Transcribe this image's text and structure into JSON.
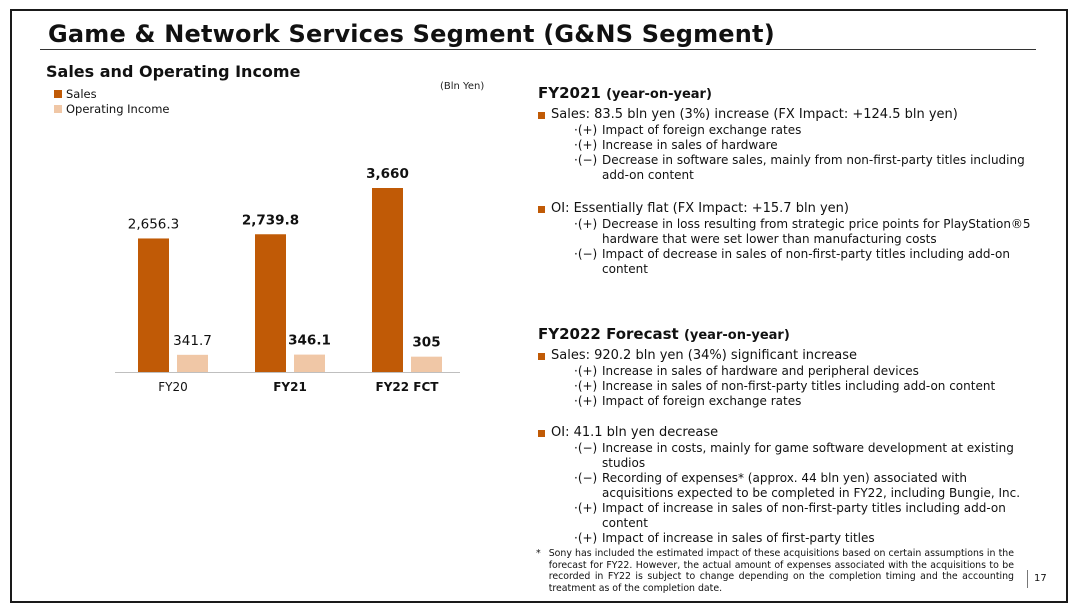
{
  "slide": {
    "title": "Game & Network Services Segment (G&NS Segment)",
    "page_number": "17"
  },
  "colors": {
    "sales": "#c05a06",
    "operating_income": "#f0c7a6",
    "bullet": "#c05a06"
  },
  "chart_data": {
    "type": "bar",
    "title": "Sales and Operating Income",
    "unit": "(Bln Yen)",
    "categories": [
      "FY20",
      "FY21",
      "FY22 FCT"
    ],
    "bold_categories": [
      "FY21",
      "FY22 FCT"
    ],
    "series": [
      {
        "name": "Sales",
        "values": [
          2656.3,
          2739.8,
          3660
        ],
        "labels": [
          "2,656.3",
          "2,739.8",
          "3,660"
        ]
      },
      {
        "name": "Operating Income",
        "values": [
          341.7,
          346.1,
          305
        ],
        "labels": [
          "341.7",
          "346.1",
          "305"
        ]
      }
    ],
    "xlabel": "",
    "ylabel": "",
    "ylim": [
      0,
      3660
    ],
    "grid": false,
    "legend_position": "top-left"
  },
  "fy2021": {
    "heading": "FY2021",
    "heading_sub": "(year-on-year)",
    "sales": {
      "text": "Sales: 83.5 bln yen (3%) increase (FX Impact: +124.5 bln yen)",
      "items": [
        {
          "mark": "·(+)",
          "text": "Impact of foreign exchange rates"
        },
        {
          "mark": "·(+)",
          "text": "Increase in sales of hardware"
        },
        {
          "mark": "·(−)",
          "text": "Decrease in software sales, mainly from non-first-party titles including add-on content"
        }
      ]
    },
    "oi": {
      "text": "OI:  Essentially flat (FX Impact: +15.7 bln yen)",
      "items": [
        {
          "mark": "·(+)",
          "text": "Decrease in loss resulting from strategic price points for PlayStation®5 hardware that were set lower than manufacturing costs"
        },
        {
          "mark": "·(−)",
          "text": "Impact of decrease in sales of non-first-party titles including add-on content"
        }
      ]
    }
  },
  "fy2022": {
    "heading": "FY2022 Forecast",
    "heading_sub": "(year-on-year)",
    "sales": {
      "text": "Sales: 920.2 bln yen (34%) significant increase",
      "items": [
        {
          "mark": "·(+)",
          "text": "Increase in sales of hardware and peripheral devices"
        },
        {
          "mark": "·(+)",
          "text": "Increase in sales of non-first-party titles including add-on content"
        },
        {
          "mark": "·(+)",
          "text": "Impact of foreign exchange rates"
        }
      ]
    },
    "oi": {
      "text": "OI: 41.1 bln yen decrease",
      "items": [
        {
          "mark": "·(−)",
          "text": "Increase in costs, mainly for game software development at existing studios"
        },
        {
          "mark": "·(−)",
          "text": "Recording of expenses* (approx. 44 bln yen) associated with acquisitions expected to be completed in FY22, including Bungie, Inc."
        },
        {
          "mark": "·(+)",
          "text": "Impact of increase in sales of non-first-party titles including add-on content"
        },
        {
          "mark": "·(+)",
          "text": "Impact of increase in sales of first-party titles"
        }
      ]
    }
  },
  "footnote": {
    "mark": "*",
    "text": "Sony has included the estimated impact of these acquisitions based on certain assumptions in the forecast for FY22. However, the actual amount of expenses associated with the acquisitions to be recorded in FY22 is subject to change depending on the completion timing and the accounting treatment as of the completion date."
  }
}
